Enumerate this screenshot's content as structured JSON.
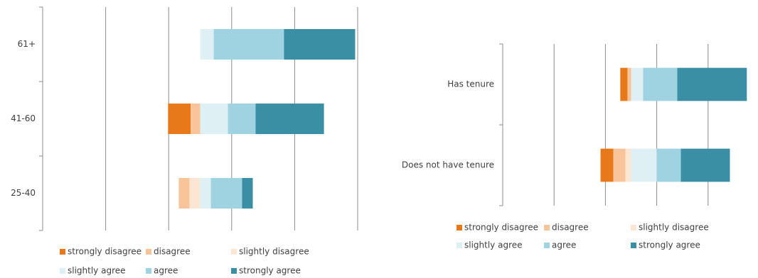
{
  "chart_data": [
    {
      "type": "diverging-bar",
      "categories": [
        "61+",
        "41-60",
        "25-40"
      ],
      "xlim": [
        -50,
        50
      ],
      "xticks": [
        -50,
        -30,
        -10,
        10,
        30,
        50
      ],
      "grid": true,
      "series": [
        {
          "name": "strongly disagree",
          "color": "#e8791a",
          "side": "negative",
          "values": [
            0,
            7.2,
            0
          ]
        },
        {
          "name": "disagree",
          "color": "#f9c49a",
          "side": "negative",
          "values": [
            0,
            3.0,
            3.4
          ]
        },
        {
          "name": "slightly disagree",
          "color": "#fde5d3",
          "side": "negative",
          "values": [
            0,
            0,
            3.4
          ]
        },
        {
          "name": "slightly agree",
          "color": "#dff0f5",
          "side": "positive",
          "values": [
            4.3,
            8.8,
            3.4
          ]
        },
        {
          "name": "agree",
          "color": "#9fd3e2",
          "side": "positive",
          "values": [
            22.3,
            8.8,
            9.9
          ]
        },
        {
          "name": "strongly agree",
          "color": "#3a8fa4",
          "side": "positive",
          "values": [
            22.6,
            21.7,
            3.4
          ]
        }
      ]
    },
    {
      "type": "diverging-bar",
      "categories": [
        "Has tenure",
        "Does not have tenure"
      ],
      "xlim": [
        -50,
        50
      ],
      "xticks": [
        -50,
        -30,
        -10,
        10,
        30
      ],
      "grid": true,
      "series": [
        {
          "name": "strongly disagree",
          "color": "#e8791a",
          "side": "negative",
          "values": [
            2.8,
            5.0
          ]
        },
        {
          "name": "disagree",
          "color": "#f9c49a",
          "side": "negative",
          "values": [
            1.4,
            4.7
          ]
        },
        {
          "name": "slightly disagree",
          "color": "#fde5d3",
          "side": "negative",
          "values": [
            0,
            2.2
          ]
        },
        {
          "name": "slightly agree",
          "color": "#dff0f5",
          "side": "positive",
          "values": [
            4.7,
            10.0
          ]
        },
        {
          "name": "agree",
          "color": "#9fd3e2",
          "side": "positive",
          "values": [
            13.3,
            9.4
          ]
        },
        {
          "name": "strongly agree",
          "color": "#3a8fa4",
          "side": "positive",
          "values": [
            27.1,
            19.1
          ]
        }
      ]
    }
  ]
}
